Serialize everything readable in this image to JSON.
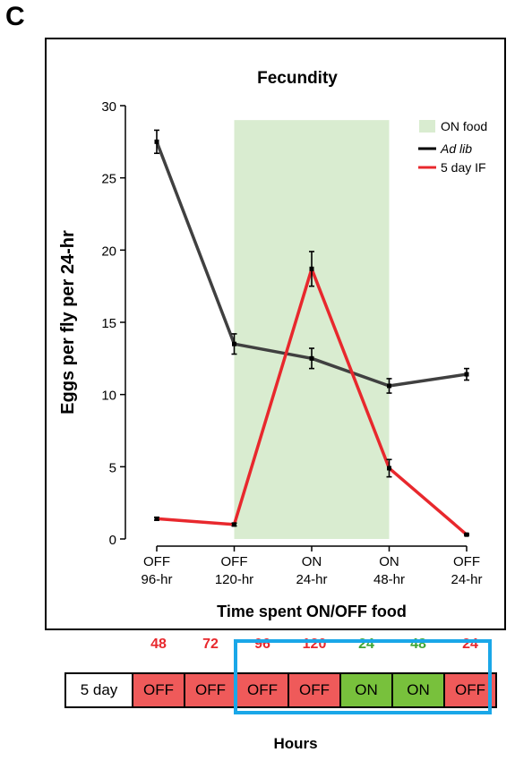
{
  "panel_letter": "C",
  "chart_data": {
    "type": "line",
    "title": "Fecundity",
    "ylabel": "Eggs per fly per 24-hr",
    "xlabel": "Time spent ON/OFF food",
    "ylim": [
      0,
      30
    ],
    "yticks": [
      0,
      5,
      10,
      15,
      20,
      25,
      30
    ],
    "categories": [
      {
        "line1": "OFF",
        "line2": "96-hr"
      },
      {
        "line1": "OFF",
        "line2": "120-hr"
      },
      {
        "line1": "ON",
        "line2": "24-hr"
      },
      {
        "line1": "ON",
        "line2": "48-hr"
      },
      {
        "line1": "OFF",
        "line2": "24-hr"
      }
    ],
    "shaded_region": {
      "label": "ON food",
      "from_index": 1,
      "to_index": 3,
      "color": "#d9ecd0"
    },
    "series": [
      {
        "name": "Ad lib",
        "color": "#404040",
        "values": [
          27.5,
          13.5,
          12.5,
          10.6,
          11.4
        ],
        "errors": [
          0.8,
          0.7,
          0.7,
          0.5,
          0.4
        ]
      },
      {
        "name": "5 day IF",
        "color": "#e8282d",
        "values": [
          1.4,
          1.0,
          18.7,
          4.9,
          0.3
        ],
        "errors": [
          0.1,
          0.1,
          1.2,
          0.6,
          0.05
        ]
      }
    ],
    "legend_position": "top-right"
  },
  "schedule": {
    "boxes": [
      {
        "label": "5 day",
        "state": "start",
        "hours": ""
      },
      {
        "label": "OFF",
        "state": "off",
        "hours": "48"
      },
      {
        "label": "OFF",
        "state": "off",
        "hours": "72"
      },
      {
        "label": "OFF",
        "state": "off",
        "hours": "96"
      },
      {
        "label": "OFF",
        "state": "off",
        "hours": "120"
      },
      {
        "label": "ON",
        "state": "on",
        "hours": "24"
      },
      {
        "label": "ON",
        "state": "on",
        "hours": "48"
      },
      {
        "label": "OFF",
        "state": "off",
        "hours": "24"
      }
    ],
    "colors": {
      "off": "#ef5a5a",
      "on": "#78c13c",
      "start": "#ffffff",
      "off_text": "#e8282d",
      "on_text": "#3fa535",
      "highlight": "#1aa7e8"
    },
    "axis_label": "Hours"
  }
}
